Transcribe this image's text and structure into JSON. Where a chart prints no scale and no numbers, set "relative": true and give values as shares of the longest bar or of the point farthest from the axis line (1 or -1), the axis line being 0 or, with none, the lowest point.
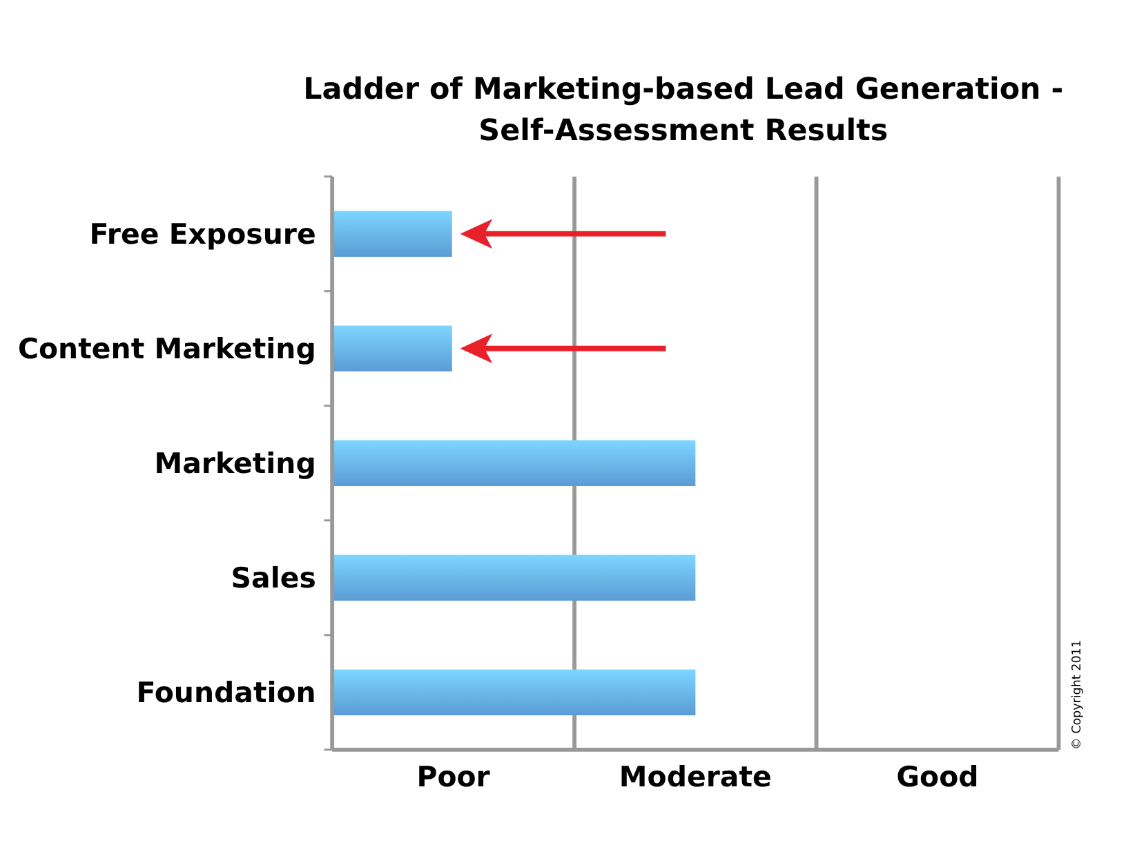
{
  "chart_data": {
    "type": "bar",
    "orientation": "horizontal",
    "relative": true,
    "title": "Ladder of Marketing-based Lead Generation -\nSelf-Assessment Results",
    "categories": [
      "Free Exposure",
      "Content Marketing",
      "Marketing",
      "Sales",
      "Foundation"
    ],
    "values": [
      0.33,
      0.33,
      1,
      1,
      1
    ],
    "color": "#5b9bd5",
    "ref_lines": [
      {
        "axis": "x",
        "value": 0.667,
        "color": "#999999"
      },
      {
        "axis": "x",
        "value": 1.333,
        "color": "#999999"
      },
      {
        "axis": "x",
        "value": 2,
        "color": "#999999"
      }
    ],
    "annotations": [
      "Poor",
      "Moderate",
      "Good",
      "© Copyright 2011"
    ]
  }
}
